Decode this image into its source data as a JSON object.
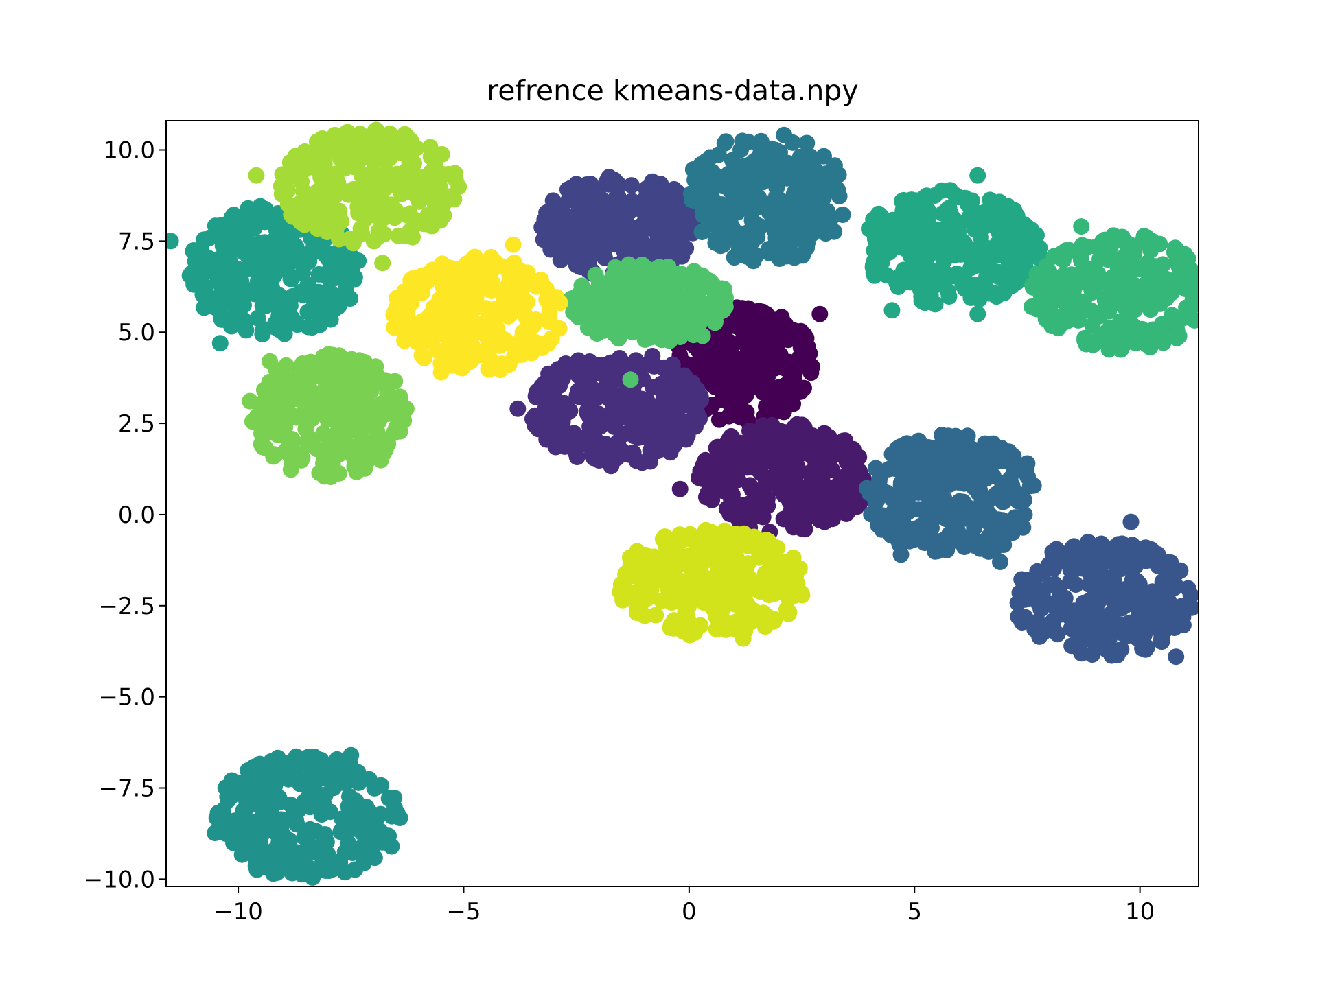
{
  "chart_data": {
    "type": "scatter",
    "title": "refrence kmeans-data.npy",
    "xlabel": "",
    "ylabel": "",
    "xlim": [
      -11.6,
      11.3
    ],
    "ylim": [
      -10.2,
      10.8
    ],
    "grid": false,
    "legend": "none",
    "x_ticks": [
      {
        "value": -10,
        "label": "−10"
      },
      {
        "value": -5,
        "label": "−5"
      },
      {
        "value": 0,
        "label": "0"
      },
      {
        "value": 5,
        "label": "5"
      },
      {
        "value": 10,
        "label": "10"
      }
    ],
    "y_ticks": [
      {
        "value": 10,
        "label": "10.0"
      },
      {
        "value": 7.5,
        "label": "7.5"
      },
      {
        "value": 5,
        "label": "5.0"
      },
      {
        "value": 2.5,
        "label": "2.5"
      },
      {
        "value": 0,
        "label": "0.0"
      },
      {
        "value": -2.5,
        "label": "−2.5"
      },
      {
        "value": -5,
        "label": "−5.0"
      },
      {
        "value": -7.5,
        "label": "−7.5"
      },
      {
        "value": -10,
        "label": "−10.0"
      }
    ],
    "clusters": [
      {
        "center": [
          1.2,
          4.1
        ],
        "spread": [
          1.6,
          1.6
        ],
        "color": "#440154"
      },
      {
        "center": [
          2.1,
          1.0
        ],
        "spread": [
          1.9,
          1.5
        ],
        "color": "#481a6c"
      },
      {
        "center": [
          -1.6,
          2.9
        ],
        "spread": [
          1.9,
          1.6
        ],
        "color": "#472f7d"
      },
      {
        "center": [
          -1.5,
          7.9
        ],
        "spread": [
          1.8,
          1.4
        ],
        "color": "#414487"
      },
      {
        "center": [
          9.2,
          -2.3
        ],
        "spread": [
          2.0,
          1.6
        ],
        "color": "#39568c"
      },
      {
        "center": [
          5.8,
          0.5
        ],
        "spread": [
          1.9,
          1.7
        ],
        "color": "#31688e"
      },
      {
        "center": [
          1.7,
          8.7
        ],
        "spread": [
          1.8,
          1.8
        ],
        "color": "#2a788e"
      },
      {
        "center": [
          -8.5,
          -8.3
        ],
        "spread": [
          2.1,
          1.7
        ],
        "color": "#21918c"
      },
      {
        "center": [
          -9.2,
          6.7
        ],
        "spread": [
          1.9,
          1.8
        ],
        "color": "#1f9e89"
      },
      {
        "center": [
          5.8,
          7.3
        ],
        "spread": [
          2.0,
          1.6
        ],
        "color": "#22a884"
      },
      {
        "center": [
          9.6,
          6.1
        ],
        "spread": [
          2.0,
          1.6
        ],
        "color": "#35b779"
      },
      {
        "center": [
          -0.9,
          5.8
        ],
        "spread": [
          1.8,
          1.1
        ],
        "color": "#4ec36b"
      },
      {
        "center": [
          -8.0,
          2.7
        ],
        "spread": [
          1.8,
          1.7
        ],
        "color": "#7ad151"
      },
      {
        "center": [
          -7.1,
          9.0
        ],
        "spread": [
          2.0,
          1.6
        ],
        "color": "#a5db36"
      },
      {
        "center": [
          0.5,
          -1.9
        ],
        "spread": [
          2.1,
          1.5
        ],
        "color": "#d2e21b"
      },
      {
        "center": [
          -4.7,
          5.5
        ],
        "spread": [
          1.9,
          1.6
        ],
        "color": "#fde725"
      }
    ],
    "outliers": [
      {
        "x": -11.5,
        "y": 7.5,
        "color": "#1f9e89"
      },
      {
        "x": -10.4,
        "y": 4.7,
        "color": "#1f9e89"
      },
      {
        "x": -9.6,
        "y": 9.3,
        "color": "#a5db36"
      },
      {
        "x": -6.8,
        "y": 6.9,
        "color": "#a5db36"
      },
      {
        "x": -9.3,
        "y": 4.2,
        "color": "#7ad151"
      },
      {
        "x": -3.8,
        "y": 2.9,
        "color": "#472f7d"
      },
      {
        "x": -0.2,
        "y": 0.7,
        "color": "#481a6c"
      },
      {
        "x": 2.9,
        "y": 5.5,
        "color": "#440154"
      },
      {
        "x": 2.3,
        "y": 10.2,
        "color": "#2a788e"
      },
      {
        "x": 6.4,
        "y": 9.3,
        "color": "#22a884"
      },
      {
        "x": 7.6,
        "y": 7.5,
        "color": "#22a884"
      },
      {
        "x": 4.5,
        "y": 5.6,
        "color": "#22a884"
      },
      {
        "x": 6.4,
        "y": 5.5,
        "color": "#22a884"
      },
      {
        "x": 8.7,
        "y": 7.9,
        "color": "#35b779"
      },
      {
        "x": 7.6,
        "y": 5.7,
        "color": "#35b779"
      },
      {
        "x": 4.7,
        "y": -1.1,
        "color": "#31688e"
      },
      {
        "x": 6.9,
        "y": -1.3,
        "color": "#31688e"
      },
      {
        "x": 7.5,
        "y": 1.4,
        "color": "#31688e"
      },
      {
        "x": 10.8,
        "y": -3.9,
        "color": "#39568c"
      },
      {
        "x": 7.3,
        "y": -2.8,
        "color": "#39568c"
      },
      {
        "x": 9.8,
        "y": -0.2,
        "color": "#39568c"
      },
      {
        "x": -6.6,
        "y": -9.1,
        "color": "#21918c"
      },
      {
        "x": -7.5,
        "y": -6.6,
        "color": "#21918c"
      },
      {
        "x": -5.5,
        "y": 3.9,
        "color": "#fde725"
      },
      {
        "x": -3.9,
        "y": 7.4,
        "color": "#fde725"
      },
      {
        "x": 0.3,
        "y": 4.9,
        "color": "#4ec36b"
      },
      {
        "x": -1.3,
        "y": 3.7,
        "color": "#4ec36b"
      },
      {
        "x": 1.2,
        "y": -3.4,
        "color": "#d2e21b"
      },
      {
        "x": 2.4,
        "y": -1.9,
        "color": "#d2e21b"
      }
    ]
  }
}
